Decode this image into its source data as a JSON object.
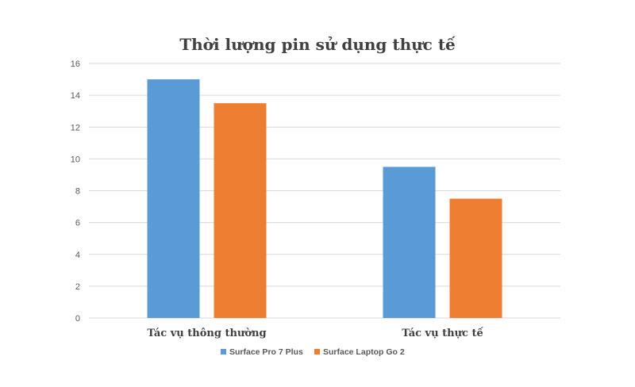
{
  "chart_data": {
    "type": "bar",
    "title": "Thời lượng pin sử dụng thực tế",
    "xlabel": "",
    "ylabel": "",
    "categories": [
      "Tác vụ thông thường",
      "Tác vụ thực tế"
    ],
    "series": [
      {
        "name": "Surface Pro 7 Plus",
        "color": "#5B9BD5",
        "values": [
          15,
          9.5
        ]
      },
      {
        "name": "Surface Laptop Go 2",
        "color": "#ED7D31",
        "values": [
          13.5,
          7.5
        ]
      }
    ],
    "ylim": [
      0,
      16
    ],
    "yticks": [
      0,
      2,
      4,
      6,
      8,
      10,
      12,
      14,
      16
    ],
    "grid": true,
    "legend": "bottom"
  },
  "colors": {
    "gridline": "#D9D9D9",
    "axis_text": "#595959",
    "title_text": "#404040",
    "category_text": "#404040"
  }
}
